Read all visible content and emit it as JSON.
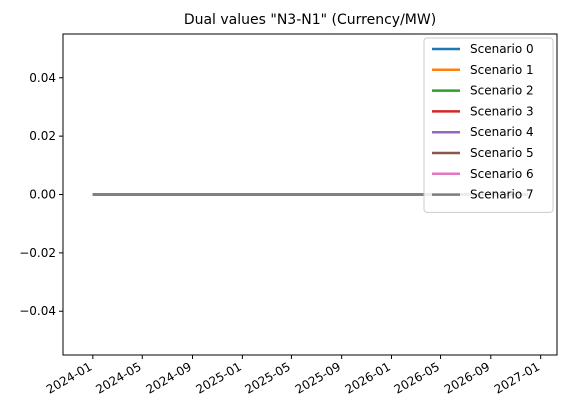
{
  "chart_data": {
    "type": "line",
    "title": "Dual values \"N3-N1\" (Currency/MW)",
    "xlabel": "",
    "ylabel": "",
    "x": [
      "2024-01-01",
      "2026-12-01"
    ],
    "xlim": [
      "2023-10-20",
      "2027-02-10"
    ],
    "ylim": [
      -0.055,
      0.055
    ],
    "x_ticks": [
      "2024-01",
      "2024-05",
      "2024-09",
      "2025-01",
      "2025-05",
      "2025-09",
      "2026-01",
      "2026-05",
      "2026-09",
      "2027-01"
    ],
    "y_ticks": [
      "0.04",
      "0.02",
      "0.00",
      "−0.02",
      "−0.04"
    ],
    "y_tick_values": [
      0.04,
      0.02,
      0.0,
      -0.02,
      -0.04
    ],
    "grid": false,
    "legend_position": "top-right",
    "series": [
      {
        "name": "Scenario 0",
        "color": "#1f77b4",
        "values": [
          0,
          0
        ]
      },
      {
        "name": "Scenario 1",
        "color": "#ff7f0e",
        "values": [
          0,
          0
        ]
      },
      {
        "name": "Scenario 2",
        "color": "#2ca02c",
        "values": [
          0,
          0
        ]
      },
      {
        "name": "Scenario 3",
        "color": "#d62728",
        "values": [
          0,
          0
        ]
      },
      {
        "name": "Scenario 4",
        "color": "#9467bd",
        "values": [
          0,
          0
        ]
      },
      {
        "name": "Scenario 5",
        "color": "#8c564b",
        "values": [
          0,
          0
        ]
      },
      {
        "name": "Scenario 6",
        "color": "#e377c2",
        "values": [
          0,
          0
        ]
      },
      {
        "name": "Scenario 7",
        "color": "#7f7f7f",
        "values": [
          0,
          0
        ]
      }
    ]
  }
}
